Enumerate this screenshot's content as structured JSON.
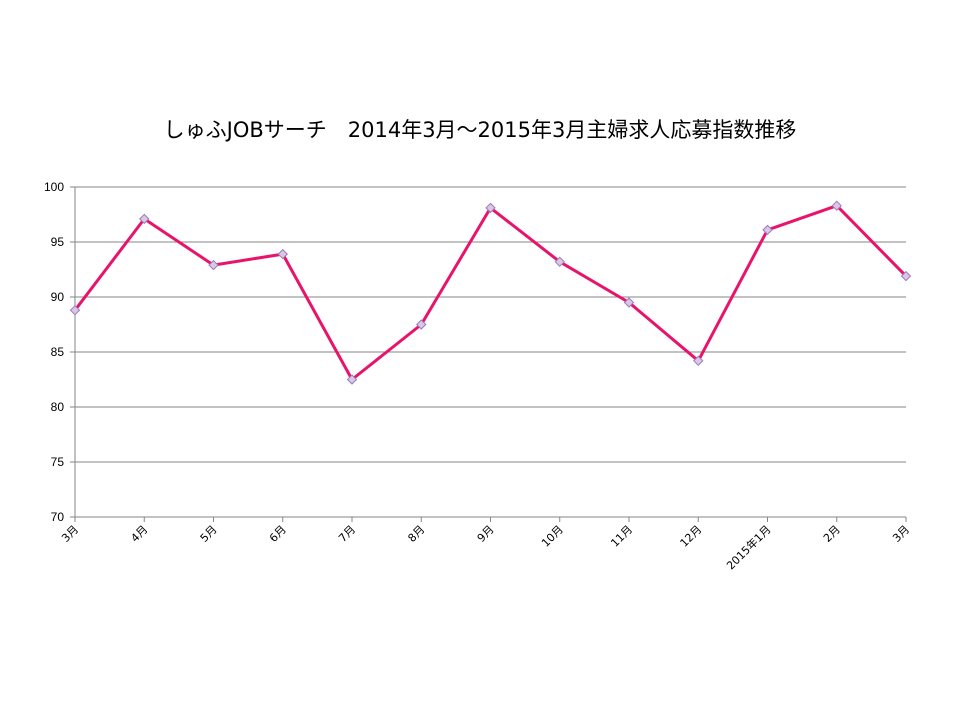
{
  "chart_data": {
    "type": "line",
    "title": "しゅふJOBサーチ　2014年3月～2015年3月主婦求人応募指数推移",
    "xlabel": "",
    "ylabel": "",
    "categories": [
      "3月",
      "4月",
      "5月",
      "6月",
      "7月",
      "8月",
      "9月",
      "10月",
      "11月",
      "12月",
      "2015年1月",
      "2月",
      "3月"
    ],
    "series": [
      {
        "values": [
          88.8,
          97.1,
          92.9,
          93.9,
          82.5,
          87.5,
          98.1,
          93.2,
          89.5,
          84.2,
          96.1,
          98.3,
          91.9
        ]
      }
    ],
    "ylim": [
      70,
      100
    ],
    "yticks": [
      70,
      75,
      80,
      85,
      90,
      95,
      100
    ],
    "grid": true,
    "legend": "none",
    "line_color": "#e8146c",
    "marker_fill": "#d9c6e8",
    "marker_stroke": "#9a7bb5",
    "grid_color": "#868686"
  }
}
